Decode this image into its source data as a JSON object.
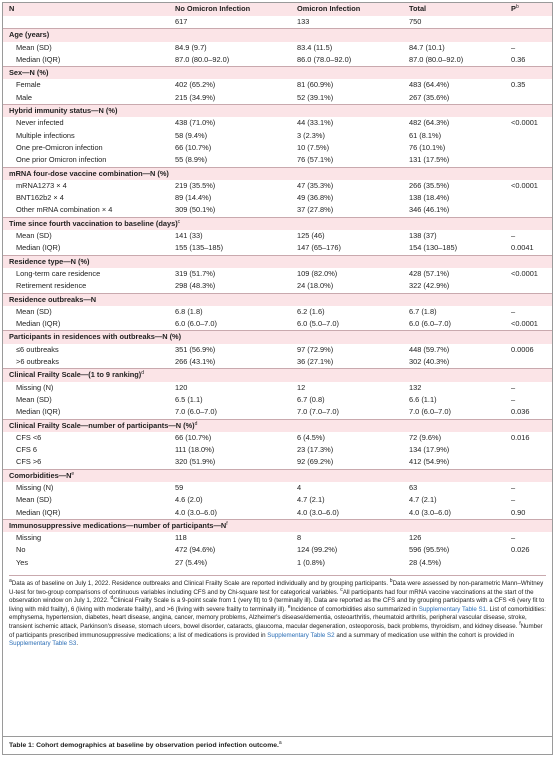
{
  "table": {
    "header": [
      {
        "label": "N"
      },
      {
        "label": "No Omicron Infection"
      },
      {
        "label": "Omicron Infection"
      },
      {
        "label": "Total"
      },
      {
        "label": "P",
        "note": "b"
      }
    ],
    "counts": [
      "617",
      "133",
      "750"
    ],
    "sections": [
      {
        "title": "Age (years)",
        "rows": [
          [
            "Mean (SD)",
            "84.9 (9.7)",
            "83.4 (11.5)",
            "84.7 (10.1)",
            "–"
          ],
          [
            "Median (IQR)",
            "87.0 (80.0–92.0)",
            "86.0 (78.0–92.0)",
            "87.0 (80.0–92.0)",
            "0.36"
          ]
        ]
      },
      {
        "title": "Sex—N (%)",
        "rows": [
          [
            "Female",
            "402 (65.2%)",
            "81 (60.9%)",
            "483 (64.4%)",
            "0.35"
          ],
          [
            "Male",
            "215 (34.9%)",
            "52 (39.1%)",
            "267 (35.6%)"
          ]
        ]
      },
      {
        "title": "Hybrid immunity status—N (%)",
        "rows": [
          [
            "Never infected",
            "438 (71.0%)",
            "44 (33.1%)",
            "482 (64.3%)",
            "<0.0001"
          ],
          [
            "Multiple infections",
            "58 (9.4%)",
            "3 (2.3%)",
            "61 (8.1%)"
          ],
          [
            "One pre-Omicron infection",
            "66 (10.7%)",
            "10 (7.5%)",
            "76 (10.1%)"
          ],
          [
            "One prior Omicron infection",
            "55 (8.9%)",
            "76 (57.1%)",
            "131 (17.5%)"
          ]
        ]
      },
      {
        "title": "mRNA four-dose vaccine combination—N (%)",
        "rows": [
          [
            "mRNA1273 × 4",
            "219 (35.5%)",
            "47 (35.3%)",
            "266 (35.5%)",
            "<0.0001"
          ],
          [
            "BNT162b2 × 4",
            "89 (14.4%)",
            "49 (36.8%)",
            "138 (18.4%)"
          ],
          [
            "Other mRNA combination × 4",
            "309 (50.1%)",
            "37 (27.8%)",
            "346 (46.1%)"
          ]
        ]
      },
      {
        "title": "Time since fourth vaccination to baseline (days)",
        "note": "c",
        "rows": [
          [
            "Mean (SD)",
            "141 (33)",
            "125 (46)",
            "138 (37)",
            "–"
          ],
          [
            "Median (IQR)",
            "155 (135–185)",
            "147 (65–176)",
            "154 (130–185)",
            "0.0041"
          ]
        ]
      },
      {
        "title": "Residence type—N (%)",
        "rows": [
          [
            "Long-term care residence",
            "319 (51.7%)",
            "109 (82.0%)",
            "428 (57.1%)",
            "<0.0001"
          ],
          [
            "Retirement residence",
            "298 (48.3%)",
            "24 (18.0%)",
            "322 (42.9%)"
          ]
        ]
      },
      {
        "title": "Residence outbreaks—N",
        "rows": [
          [
            "Mean (SD)",
            "6.8 (1.8)",
            "6.2 (1.6)",
            "6.7 (1.8)",
            "–"
          ],
          [
            "Median (IQR)",
            "6.0 (6.0–7.0)",
            "6.0 (5.0–7.0)",
            "6.0 (6.0–7.0)",
            "<0.0001"
          ]
        ]
      },
      {
        "title": "Participants in residences with outbreaks—N (%)",
        "rows": [
          [
            "≤6 outbreaks",
            "351 (56.9%)",
            "97 (72.9%)",
            "448 (59.7%)",
            "0.0006"
          ],
          [
            ">6 outbreaks",
            "266 (43.1%)",
            "36 (27.1%)",
            "302 (40.3%)"
          ]
        ]
      },
      {
        "title": "Clinical Frailty Scale—(1 to 9 ranking)",
        "note": "d",
        "rows": [
          [
            "Missing (N)",
            "120",
            "12",
            "132",
            "–"
          ],
          [
            "Mean (SD)",
            "6.5 (1.1)",
            "6.7 (0.8)",
            "6.6 (1.1)",
            "–"
          ],
          [
            "Median (IQR)",
            "7.0 (6.0–7.0)",
            "7.0 (7.0–7.0)",
            "7.0 (6.0–7.0)",
            "0.036"
          ]
        ]
      },
      {
        "title": "Clinical Frailty Scale—number of participants—N (%)",
        "note": "d",
        "rows": [
          [
            "CFS <6",
            "66 (10.7%)",
            "6 (4.5%)",
            "72 (9.6%)",
            "0.016"
          ],
          [
            "CFS 6",
            "111 (18.0%)",
            "23 (17.3%)",
            "134 (17.9%)"
          ],
          [
            "CFS >6",
            "320 (51.9%)",
            "92 (69.2%)",
            "412 (54.9%)"
          ]
        ]
      },
      {
        "title": "Comorbidities—N",
        "note": "e",
        "rows": [
          [
            "Missing (N)",
            "59",
            "4",
            "63",
            "–"
          ],
          [
            "Mean (SD)",
            "4.6 (2.0)",
            "4.7 (2.1)",
            "4.7 (2.1)",
            "–"
          ],
          [
            "Median (IQR)",
            "4.0 (3.0–6.0)",
            "4.0 (3.0–6.0)",
            "4.0 (3.0–6.0)",
            "0.90"
          ]
        ]
      },
      {
        "title": "Immunosuppressive medications—number of participants—N",
        "note": "f",
        "rows": [
          [
            "Missing",
            "118",
            "8",
            "126",
            "–"
          ],
          [
            "No",
            "472 (94.6%)",
            "124 (99.2%)",
            "596 (95.5%)",
            "0.026"
          ],
          [
            "Yes",
            "27 (5.4%)",
            "1 (0.8%)",
            "28 (4.5%)"
          ]
        ]
      }
    ]
  },
  "footnotes": [
    {
      "mark": "a",
      "parts": [
        {
          "text": "Data as of baseline on July 1, 2022. Residence outbreaks and Clinical Frailty Scale are reported individually and by grouping participants. "
        }
      ]
    },
    {
      "mark": "b",
      "parts": [
        {
          "text": "Data were assessed by non-parametric Mann–Whitney U-test for two-group comparisons of continuous variables including CFS and by Chi-square test for categorical variables. "
        }
      ]
    },
    {
      "mark": "c",
      "parts": [
        {
          "text": "All participants had four mRNA vaccine vaccinations at the start of the observation window on July 1, 2022. "
        }
      ]
    },
    {
      "mark": "d",
      "parts": [
        {
          "text": "Clinical Frailty Scale is a 9-point scale from 1 (very fit) to 9 (terminally ill). Data are reported as the CFS and by grouping participants with a CFS <6 (very fit to living with mild frailty), 6 (living with moderate frailty), and >6 (living with severe frailty to terminally ill). "
        }
      ]
    },
    {
      "mark": "e",
      "parts": [
        {
          "text": "Incidence of comorbidities also summarized in "
        },
        {
          "text": "Supplementary Table S1",
          "link": true
        },
        {
          "text": ". List of comorbidities: emphysema, hypertension, diabetes, heart disease, angina, cancer, memory problems, Alzheimer's disease/dementia, osteoarthritis, rheumatoid arthritis, peripheral vascular disease, stroke, transient ischemic attack, Parkinson's disease, stomach ulcers, bowel disorder, cataracts, glaucoma, macular degeneration, osteoporosis, back problems, thyroidism, and kidney disease. "
        }
      ]
    },
    {
      "mark": "f",
      "parts": [
        {
          "text": "Number of participants prescribed immunosuppressive medications; a list of medications is provided in "
        },
        {
          "text": "Supplementary Table S2",
          "link": true
        },
        {
          "text": " and a summary of medication use within the cohort is provided in "
        },
        {
          "text": "Supplementary Table S3",
          "link": true
        },
        {
          "text": "."
        }
      ]
    }
  ],
  "caption": {
    "text": "Table 1: Cohort demographics at baseline by observation period infection outcome.",
    "note": "a"
  }
}
